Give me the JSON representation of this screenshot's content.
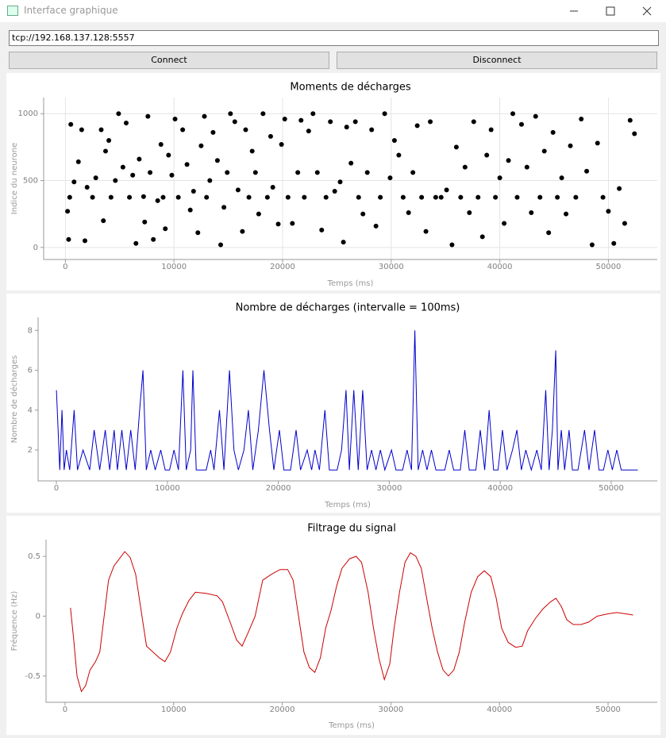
{
  "window": {
    "title": "Interface graphique"
  },
  "address": "tcp://192.168.137.128:5557",
  "buttons": [
    "Connect",
    "Disconnect"
  ],
  "chart_data": [
    {
      "type": "scatter",
      "title": "Moments de décharges",
      "xlabel": "Temps (ms)",
      "ylabel": "Indice du neurone",
      "color": "#000000",
      "grid": true,
      "xlim": [
        -2000,
        54500
      ],
      "ylim": [
        -90,
        1120
      ],
      "xticks": [
        0,
        10000,
        20000,
        30000,
        40000,
        50000
      ],
      "yticks": [
        0,
        500,
        1000
      ],
      "x": [
        500,
        300,
        200,
        400,
        800,
        1200,
        1500,
        1800,
        2000,
        2500,
        2800,
        3300,
        3500,
        3700,
        4000,
        4200,
        4600,
        4900,
        5300,
        5600,
        5900,
        6200,
        6500,
        6800,
        7200,
        7300,
        7600,
        7800,
        8100,
        8500,
        8800,
        9000,
        9200,
        9500,
        9800,
        10100,
        10400,
        10800,
        11200,
        11500,
        11800,
        12200,
        12500,
        12800,
        13000,
        13300,
        13600,
        14000,
        14300,
        14600,
        14900,
        15200,
        15600,
        15900,
        16300,
        16600,
        16900,
        17200,
        17500,
        17800,
        18200,
        18600,
        18900,
        19100,
        19600,
        19900,
        20200,
        20500,
        20900,
        21400,
        21700,
        22000,
        22400,
        22800,
        23200,
        23600,
        24000,
        24400,
        24800,
        25300,
        25600,
        25900,
        26300,
        26700,
        27000,
        27400,
        27800,
        28200,
        28600,
        29000,
        29400,
        29900,
        30300,
        30700,
        31100,
        31600,
        32000,
        32400,
        32800,
        33200,
        33600,
        34100,
        34600,
        35100,
        35600,
        36000,
        36400,
        36800,
        37200,
        37600,
        38000,
        38400,
        38800,
        39200,
        39600,
        40000,
        40400,
        40800,
        41200,
        41600,
        42000,
        42500,
        42900,
        43300,
        43700,
        44100,
        44500,
        44900,
        45300,
        45700,
        46100,
        46500,
        47000,
        47500,
        48000,
        48500,
        49000,
        49500,
        50000,
        50500,
        51000,
        51500,
        52000,
        52400
      ],
      "values": [
        920,
        60,
        270,
        375,
        490,
        640,
        880,
        50,
        450,
        375,
        520,
        880,
        200,
        720,
        800,
        375,
        500,
        1000,
        600,
        930,
        375,
        540,
        30,
        660,
        380,
        190,
        980,
        560,
        60,
        350,
        770,
        375,
        140,
        690,
        540,
        960,
        375,
        880,
        620,
        280,
        420,
        110,
        760,
        980,
        375,
        500,
        860,
        650,
        20,
        300,
        560,
        1000,
        940,
        430,
        120,
        880,
        375,
        720,
        560,
        250,
        1000,
        375,
        830,
        450,
        175,
        770,
        960,
        375,
        180,
        560,
        950,
        375,
        870,
        1000,
        560,
        130,
        375,
        940,
        420,
        490,
        40,
        900,
        630,
        940,
        375,
        250,
        560,
        880,
        160,
        375,
        1000,
        520,
        800,
        690,
        375,
        260,
        560,
        910,
        375,
        120,
        940,
        375,
        375,
        430,
        20,
        750,
        375,
        600,
        260,
        940,
        375,
        80,
        690,
        880,
        375,
        520,
        180,
        650,
        1000,
        375,
        920,
        600,
        260,
        980,
        375,
        720,
        110,
        860,
        375,
        520,
        250,
        760,
        375,
        960,
        570,
        20,
        780,
        375,
        270,
        30,
        440,
        180,
        950,
        850
      ]
    },
    {
      "type": "line",
      "title": "Nombre de décharges (intervalle = 100ms)",
      "xlabel": "Temps (ms)",
      "ylabel": "Nombre de décharges",
      "color": "#0000cc",
      "grid": false,
      "xlim": [
        -1650,
        54150
      ],
      "ylim": [
        0.45,
        8.65
      ],
      "xticks": [
        0,
        10000,
        20000,
        30000,
        40000,
        50000
      ],
      "yticks": [
        2,
        4,
        6,
        8
      ],
      "x": [
        0,
        300,
        500,
        700,
        900,
        1200,
        1600,
        1900,
        2400,
        3000,
        3400,
        3900,
        4400,
        4800,
        5200,
        5500,
        5900,
        6300,
        6700,
        7100,
        7500,
        7800,
        8100,
        8500,
        8900,
        9400,
        9800,
        10200,
        10600,
        11000,
        11400,
        11700,
        12100,
        12300,
        12600,
        13500,
        13900,
        14200,
        14700,
        15100,
        15600,
        16000,
        16400,
        16900,
        17300,
        17700,
        18200,
        18700,
        19200,
        19600,
        20100,
        20500,
        21100,
        21600,
        22000,
        22600,
        23000,
        23300,
        23700,
        24200,
        24600,
        25300,
        25700,
        26100,
        26400,
        26800,
        27200,
        27600,
        28000,
        28400,
        28800,
        29200,
        29600,
        30200,
        30600,
        31200,
        31600,
        32000,
        32300,
        32600,
        33000,
        33400,
        33800,
        34200,
        35000,
        35400,
        35800,
        36400,
        36800,
        37200,
        37800,
        38200,
        38600,
        39000,
        39400,
        39800,
        40200,
        40600,
        41100,
        41500,
        41900,
        42300,
        42800,
        43300,
        43700,
        44100,
        44400,
        44700,
        45000,
        45200,
        45500,
        45800,
        46200,
        46500,
        47000,
        47600,
        48000,
        48500,
        48900,
        49300,
        49700,
        50100,
        50500,
        50900,
        51500,
        52400
      ],
      "values": [
        5,
        1,
        4,
        1,
        2,
        1,
        4,
        1,
        2,
        1,
        3,
        1,
        3,
        1,
        3,
        1,
        3,
        1,
        3,
        1,
        4,
        6,
        1,
        2,
        1,
        2,
        1,
        1,
        2,
        1,
        6,
        1,
        2,
        6,
        1,
        1,
        2,
        1,
        4,
        1,
        6,
        2,
        1,
        2,
        4,
        1,
        3,
        6,
        3,
        1,
        3,
        1,
        1,
        3,
        1,
        2,
        1,
        2,
        1,
        4,
        1,
        1,
        2,
        5,
        1,
        5,
        1,
        5,
        1,
        2,
        1,
        2,
        1,
        2,
        1,
        1,
        2,
        1,
        8,
        1,
        2,
        1,
        2,
        1,
        1,
        2,
        1,
        1,
        3,
        1,
        1,
        3,
        1,
        4,
        1,
        1,
        3,
        1,
        2,
        3,
        1,
        2,
        1,
        2,
        1,
        5,
        1,
        3,
        7,
        1,
        3,
        1,
        3,
        1,
        1,
        3,
        1,
        3,
        1,
        1,
        2,
        1,
        2,
        1,
        1,
        1
      ]
    },
    {
      "type": "line",
      "title": "Filtrage du signal",
      "xlabel": "Temps (ms)",
      "ylabel": "Fréquence (Hz)",
      "color": "#cc0000",
      "grid": false,
      "xlim": [
        -1750,
        54530
      ],
      "ylim": [
        -0.72,
        0.64
      ],
      "xticks": [
        0,
        10000,
        20000,
        30000,
        40000,
        50000
      ],
      "yticks": [
        -0.5,
        0,
        0.5
      ],
      "x": [
        500,
        800,
        1100,
        1500,
        1900,
        2300,
        2800,
        3200,
        3600,
        4000,
        4500,
        5000,
        5500,
        6000,
        6500,
        7000,
        7500,
        8100,
        8700,
        9200,
        9700,
        10300,
        10800,
        11400,
        12000,
        13000,
        14000,
        14500,
        15200,
        15800,
        16300,
        16800,
        17500,
        18200,
        19000,
        19800,
        20500,
        21000,
        21500,
        22000,
        22500,
        23000,
        23500,
        24000,
        24500,
        25000,
        25500,
        26200,
        26800,
        27300,
        27900,
        28400,
        28900,
        29400,
        29900,
        30300,
        30800,
        31300,
        31800,
        32300,
        32800,
        33300,
        33800,
        34300,
        34800,
        35300,
        35800,
        36300,
        36800,
        37400,
        38000,
        38600,
        39200,
        39700,
        40200,
        40800,
        41500,
        42100,
        42600,
        43300,
        44000,
        44700,
        45200,
        45700,
        46200,
        46800,
        47500,
        48200,
        49000,
        50000,
        50800,
        51600,
        52300
      ],
      "values": [
        0.07,
        -0.2,
        -0.5,
        -0.63,
        -0.58,
        -0.45,
        -0.38,
        -0.3,
        0,
        0.3,
        0.42,
        0.48,
        0.54,
        0.49,
        0.35,
        0.05,
        -0.25,
        -0.3,
        -0.35,
        -0.38,
        -0.3,
        -0.1,
        0.02,
        0.13,
        0.2,
        0.19,
        0.17,
        0.12,
        -0.05,
        -0.2,
        -0.25,
        -0.15,
        0,
        0.3,
        0.35,
        0.39,
        0.39,
        0.3,
        0,
        -0.3,
        -0.43,
        -0.47,
        -0.35,
        -0.1,
        0.05,
        0.25,
        0.4,
        0.48,
        0.5,
        0.45,
        0.2,
        -0.1,
        -0.35,
        -0.53,
        -0.4,
        -0.1,
        0.2,
        0.45,
        0.53,
        0.5,
        0.4,
        0.15,
        -0.1,
        -0.3,
        -0.45,
        -0.5,
        -0.45,
        -0.3,
        -0.05,
        0.2,
        0.33,
        0.38,
        0.33,
        0.15,
        -0.1,
        -0.22,
        -0.26,
        -0.25,
        -0.12,
        -0.02,
        0.06,
        0.12,
        0.15,
        0.08,
        -0.03,
        -0.07,
        -0.07,
        -0.05,
        0,
        0.02,
        0.03,
        0.02,
        0.01
      ]
    }
  ]
}
